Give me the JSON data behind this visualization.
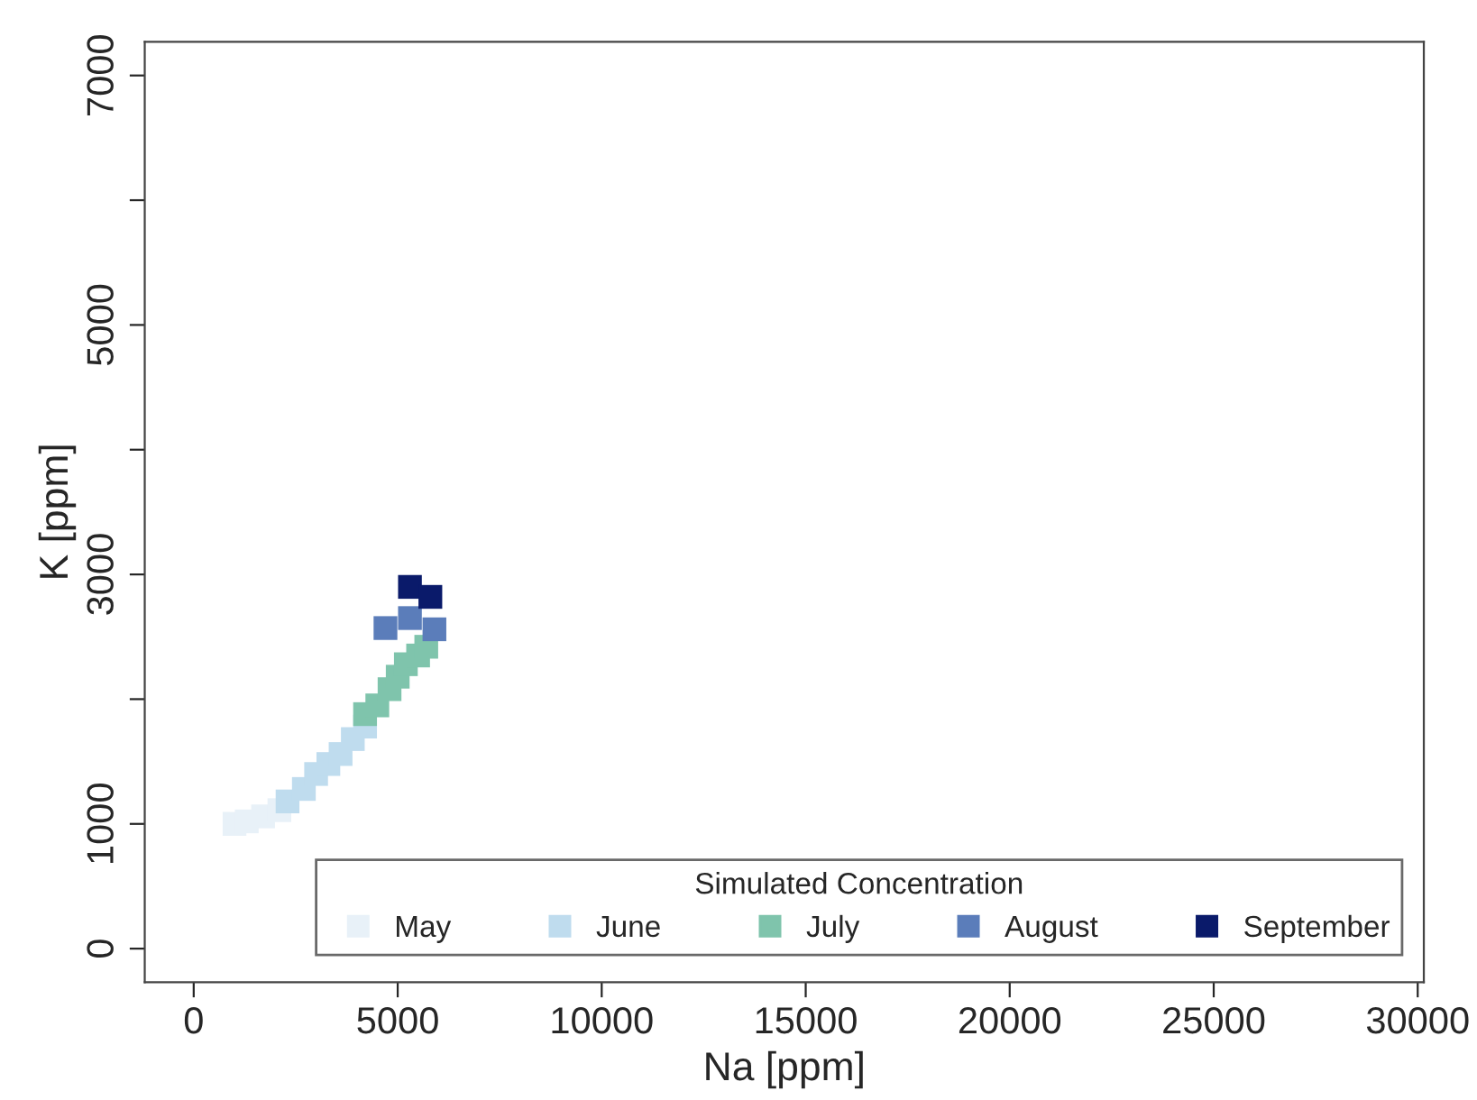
{
  "chart_data": {
    "type": "scatter",
    "xlabel": "Na [ppm]",
    "ylabel": "K [ppm]",
    "legend_title": "Simulated Concentration",
    "xlim": [
      -1200,
      30150
    ],
    "ylim": [
      -270,
      7270
    ],
    "xticks": [
      0,
      5000,
      10000,
      15000,
      20000,
      25000,
      30000
    ],
    "yticks": [
      0,
      1000,
      {
        "value": 2000,
        "label": null
      },
      3000,
      {
        "value": 4000,
        "label": null
      },
      5000,
      {
        "value": 6000,
        "label": null
      },
      7000
    ],
    "grid": false,
    "legend": "bottom right",
    "marker": "square",
    "series": [
      {
        "name": "May",
        "color": "#e8f1f8",
        "x": [
          1000,
          1300,
          1700,
          2100
        ],
        "values": [
          1000,
          1020,
          1060,
          1110
        ]
      },
      {
        "name": "June",
        "color": "#bfdcee",
        "x": [
          2300,
          2700,
          3000,
          3300,
          3600,
          3900,
          4200
        ],
        "values": [
          1180,
          1280,
          1400,
          1480,
          1560,
          1680,
          1780
        ]
      },
      {
        "name": "July",
        "color": "#7fc4ac",
        "x": [
          4200,
          4500,
          4800,
          5000,
          5200,
          5500,
          5700
        ],
        "values": [
          1880,
          1950,
          2080,
          2180,
          2280,
          2350,
          2420
        ]
      },
      {
        "name": "August",
        "color": "#5b7dba",
        "x": [
          4700,
          5300,
          5900
        ],
        "values": [
          2570,
          2650,
          2560
        ]
      },
      {
        "name": "September",
        "color": "#0a1a6a",
        "x": [
          5300,
          5800
        ],
        "values": [
          2900,
          2820
        ]
      }
    ]
  }
}
